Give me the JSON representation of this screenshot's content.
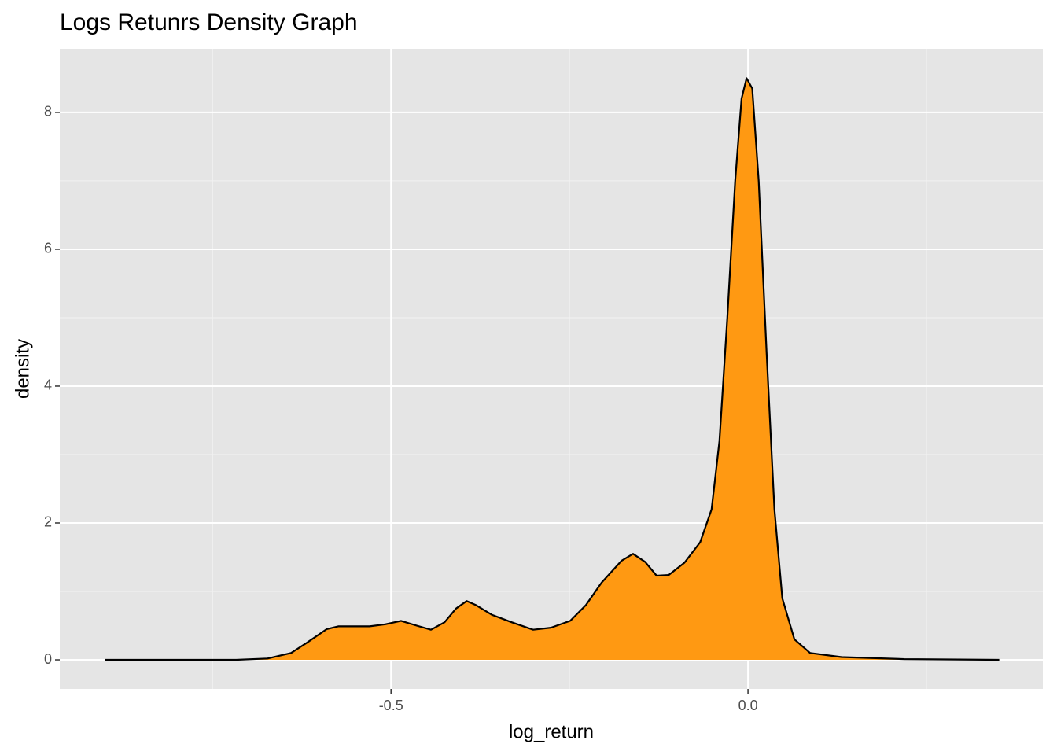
{
  "chart_data": {
    "type": "density",
    "title": "Logs Retunrs Density Graph",
    "x_label": "log_return",
    "y_label": "density",
    "x": [
      -0.901,
      -0.717,
      -0.673,
      -0.64,
      -0.618,
      -0.59,
      -0.574,
      -0.53,
      -0.508,
      -0.486,
      -0.464,
      -0.444,
      -0.425,
      -0.409,
      -0.394,
      -0.381,
      -0.359,
      -0.331,
      -0.301,
      -0.276,
      -0.249,
      -0.227,
      -0.205,
      -0.177,
      -0.161,
      -0.144,
      -0.128,
      -0.111,
      -0.089,
      -0.067,
      -0.051,
      -0.04,
      -0.029,
      -0.018,
      -0.009,
      -0.002,
      0.006,
      0.015,
      0.026,
      0.037,
      0.048,
      0.065,
      0.087,
      0.131,
      0.219,
      0.352
    ],
    "values": [
      0,
      0,
      0.02,
      0.1,
      0.25,
      0.45,
      0.49,
      0.49,
      0.52,
      0.57,
      0.5,
      0.44,
      0.55,
      0.75,
      0.86,
      0.8,
      0.66,
      0.55,
      0.44,
      0.47,
      0.57,
      0.8,
      1.13,
      1.45,
      1.55,
      1.43,
      1.23,
      1.24,
      1.42,
      1.72,
      2.2,
      3.2,
      5.0,
      7.0,
      8.2,
      8.5,
      8.35,
      7.0,
      4.5,
      2.2,
      0.9,
      0.3,
      0.1,
      0.04,
      0.01,
      0
    ],
    "color": "#ff9912",
    "line_color": "#000000",
    "xlim": [
      -0.964,
      0.413
    ],
    "ylim": [
      -0.425,
      8.93
    ],
    "xticks": [
      {
        "value": -0.5,
        "label": "-0.5"
      },
      {
        "value": 0,
        "label": "0.0"
      }
    ],
    "yticks": [
      0,
      2,
      4,
      6,
      8
    ],
    "x_minor_grid": [
      -0.75,
      -0.25,
      0.25
    ],
    "y_minor_grid": [
      1,
      3,
      5,
      7
    ],
    "grid": true
  }
}
